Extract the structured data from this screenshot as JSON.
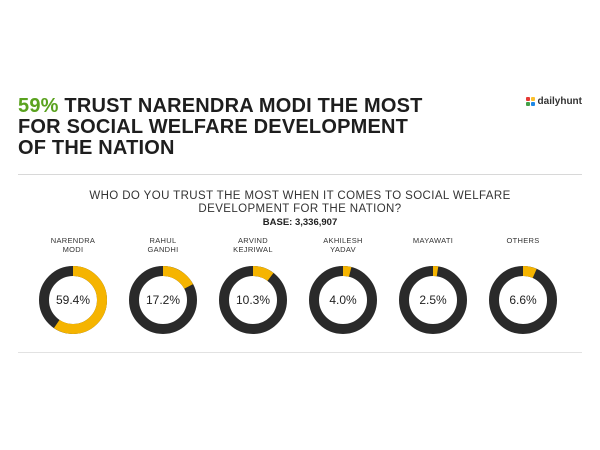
{
  "headline": {
    "accent": "59%",
    "line1_rest": " TRUST NARENDRA MODI THE MOST",
    "line2": "FOR SOCIAL WELFARE DEVELOPMENT",
    "line3": "OF THE NATION"
  },
  "logo": {
    "text": "dailyhunt"
  },
  "question": {
    "line1": "WHO DO YOU TRUST THE MOST WHEN IT COMES TO SOCIAL WELFARE",
    "line2": "DEVELOPMENT FOR THE NATION?"
  },
  "base": "BASE: 3,336,907",
  "colors": {
    "accent_green": "#5aa21f",
    "ring_fill": "#f5b400",
    "ring_track": "#2a2a2a"
  },
  "chart_data": {
    "type": "pie",
    "title": "WHO DO YOU TRUST THE MOST WHEN IT COMES TO SOCIAL WELFARE DEVELOPMENT FOR THE NATION?",
    "categories": [
      "NARENDRA MODI",
      "RAHUL GANDHI",
      "ARVIND KEJRIWAL",
      "AKHILESH YADAV",
      "MAYAWATI",
      "OTHERS"
    ],
    "items": [
      {
        "name_line1": "NARENDRA",
        "name_line2": "MODI",
        "value": 59.4,
        "label": "59.4%"
      },
      {
        "name_line1": "RAHUL",
        "name_line2": "GANDHI",
        "value": 17.2,
        "label": "17.2%"
      },
      {
        "name_line1": "ARVIND",
        "name_line2": "KEJRIWAL",
        "value": 10.3,
        "label": "10.3%"
      },
      {
        "name_line1": "AKHILESH",
        "name_line2": "YADAV",
        "value": 4.0,
        "label": "4.0%"
      },
      {
        "name_line1": "MAYAWATI",
        "name_line2": "",
        "value": 2.5,
        "label": "2.5%"
      },
      {
        "name_line1": "OTHERS",
        "name_line2": "",
        "value": 6.6,
        "label": "6.6%"
      }
    ]
  }
}
